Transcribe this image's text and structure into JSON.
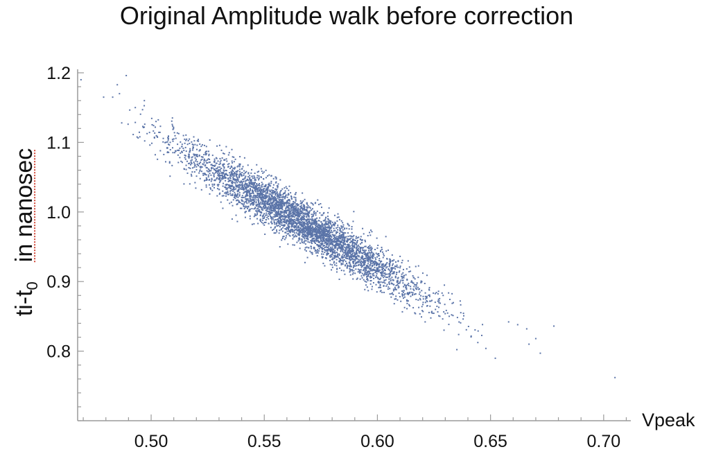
{
  "chart_data": {
    "type": "scatter",
    "title": "Original Amplitude walk before correction",
    "xlabel": "Vpeak",
    "ylabel": {
      "main": "ti-t",
      "subscript": "0",
      "suffix": "in nanosec"
    },
    "xlim": [
      0.462,
      0.712
    ],
    "ylim": [
      0.7,
      1.205
    ],
    "x_ticks": [
      0.5,
      0.55,
      0.6,
      0.65,
      0.7
    ],
    "x_tick_labels": [
      "0.50",
      "0.55",
      "0.60",
      "0.65",
      "0.70"
    ],
    "y_ticks": [
      0.8,
      0.9,
      1.0,
      1.1,
      1.2
    ],
    "y_tick_labels": [
      "0.8",
      "0.9",
      "1.0",
      "1.1",
      "1.2"
    ],
    "grid": false,
    "point_color": "#5b74a8",
    "cloud": {
      "n_points": 4200,
      "x_center": 0.566,
      "x_sd": 0.027,
      "slope": -1.95,
      "intercept": 2.089,
      "y_residual_sd": 0.016
    },
    "outliers": [
      {
        "x": 0.469,
        "y": 1.19
      },
      {
        "x": 0.479,
        "y": 1.165
      },
      {
        "x": 0.483,
        "y": 1.165
      },
      {
        "x": 0.486,
        "y": 1.17
      },
      {
        "x": 0.489,
        "y": 1.196
      },
      {
        "x": 0.487,
        "y": 1.128
      },
      {
        "x": 0.493,
        "y": 1.15
      },
      {
        "x": 0.495,
        "y": 1.108
      },
      {
        "x": 0.497,
        "y": 1.16
      },
      {
        "x": 0.658,
        "y": 0.842
      },
      {
        "x": 0.662,
        "y": 0.838
      },
      {
        "x": 0.666,
        "y": 0.832
      },
      {
        "x": 0.667,
        "y": 0.81
      },
      {
        "x": 0.67,
        "y": 0.818
      },
      {
        "x": 0.672,
        "y": 0.797
      },
      {
        "x": 0.678,
        "y": 0.836
      },
      {
        "x": 0.705,
        "y": 0.762
      }
    ]
  }
}
